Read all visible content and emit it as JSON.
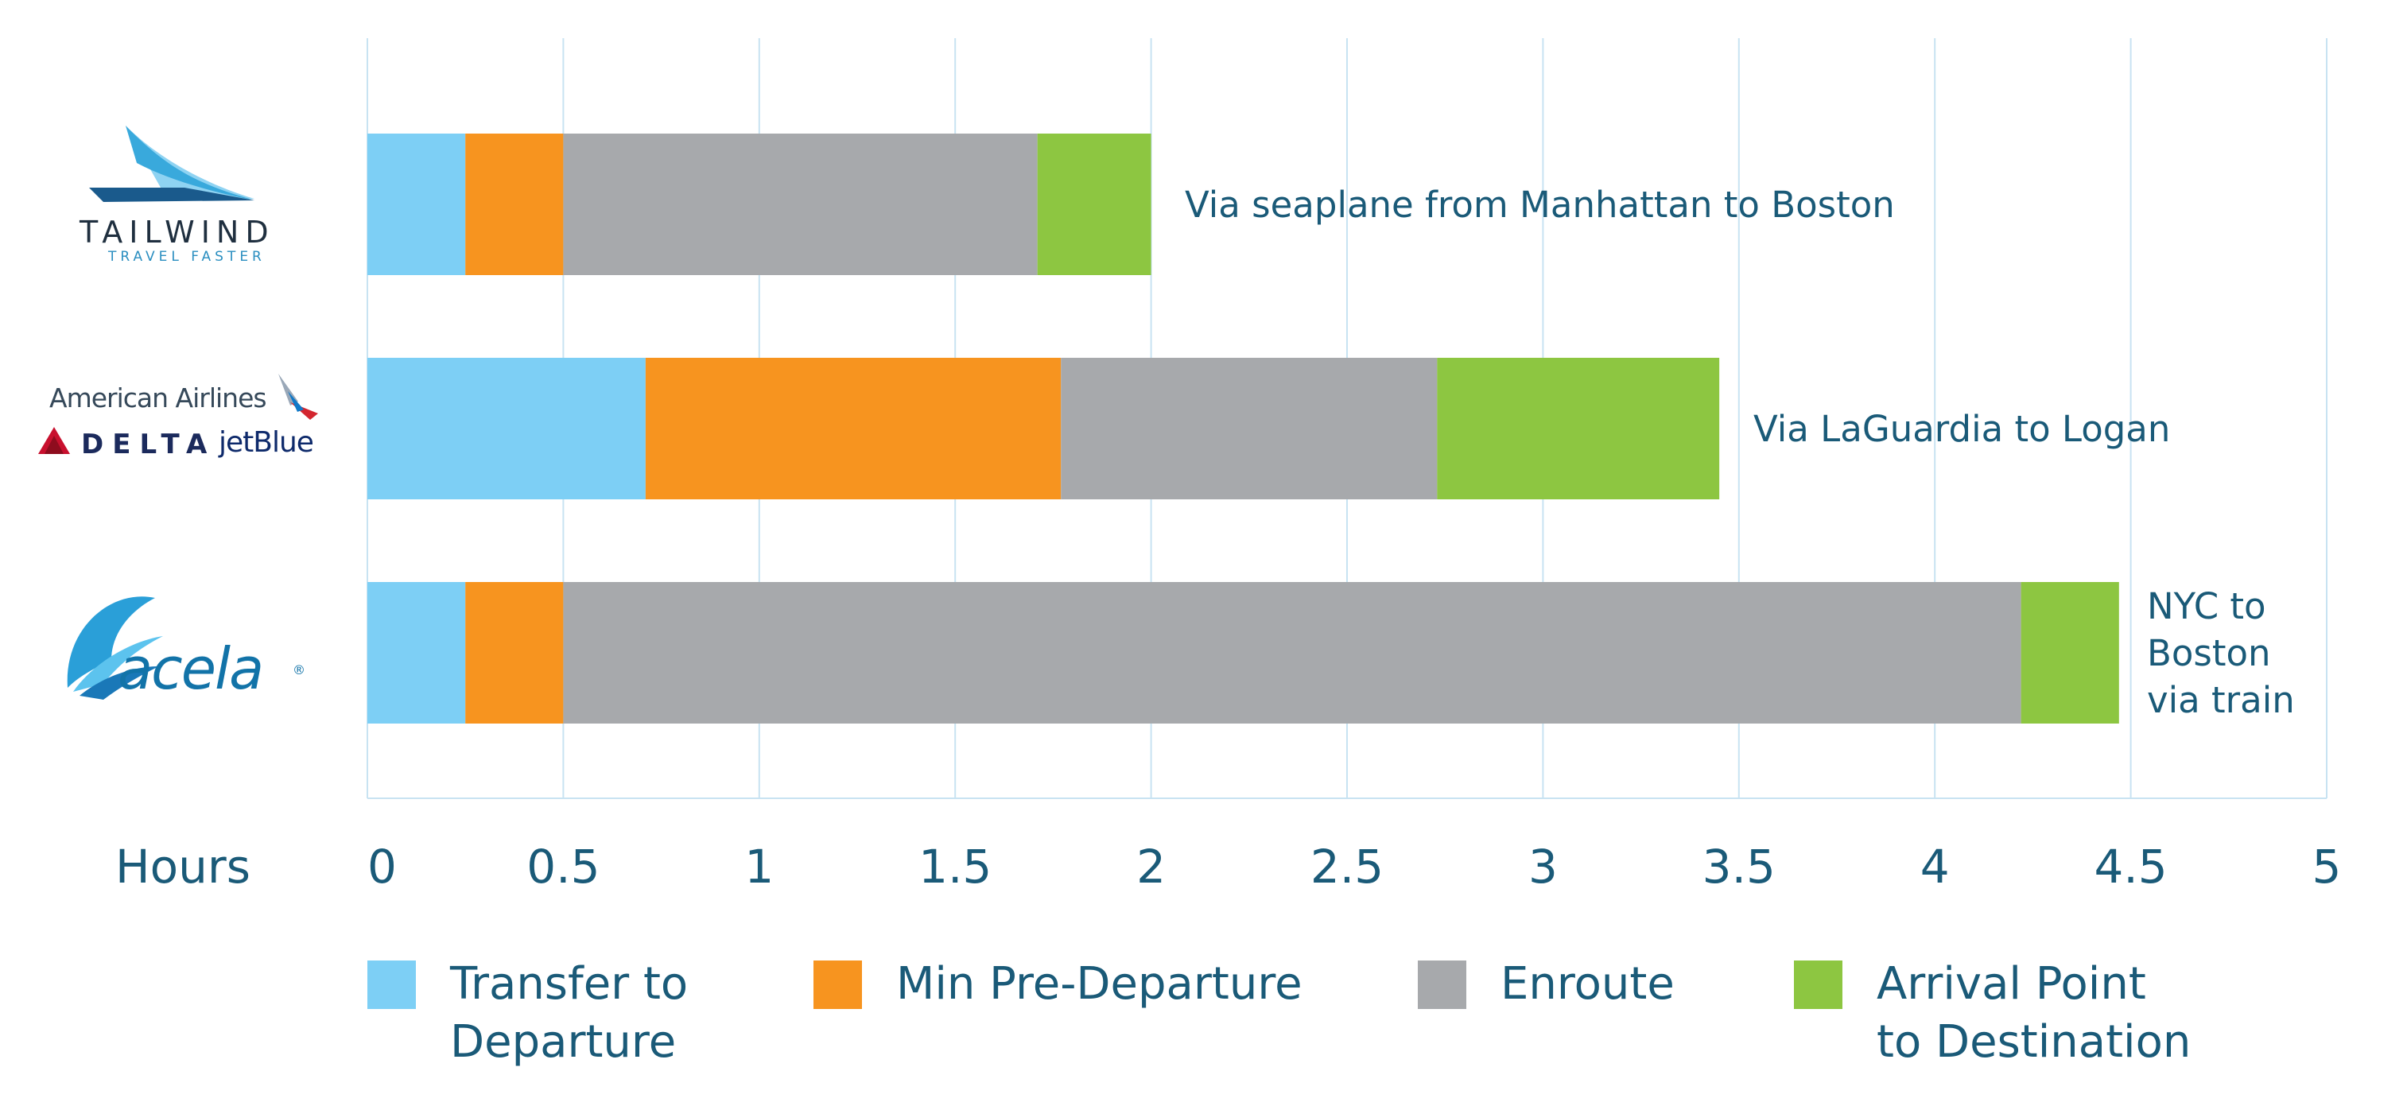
{
  "chart_data": {
    "type": "bar",
    "orientation": "horizontal",
    "stacked": true,
    "xlabel": "Hours",
    "xlim": [
      0,
      5
    ],
    "x_ticks": [
      "0",
      "0.5",
      "1",
      "1.5",
      "2",
      "2.5",
      "3",
      "3.5",
      "4",
      "4.5",
      "5"
    ],
    "grid": true,
    "legend_position": "bottom",
    "categories": [
      "Tailwind",
      "American Airlines / Delta / JetBlue",
      "Acela"
    ],
    "series": [
      {
        "name": "Transfer to Departure",
        "color": "#7dcff5",
        "values": [
          0.25,
          0.71,
          0.25
        ]
      },
      {
        "name": "Min Pre-Departure",
        "color": "#f7941f",
        "values": [
          0.25,
          1.06,
          0.25
        ]
      },
      {
        "name": "Enroute",
        "color": "#a7a9ac",
        "values": [
          1.21,
          0.96,
          3.72
        ]
      },
      {
        "name": "Arrival Point to Destination",
        "color": "#8dc641",
        "values": [
          0.29,
          0.72,
          0.25
        ]
      }
    ],
    "legend_labels": [
      [
        "Transfer to",
        "Departure"
      ],
      [
        "Min Pre-Departure"
      ],
      [
        "Enroute"
      ],
      [
        "Arrival Point",
        "to Destination"
      ]
    ],
    "annotations": [
      [
        "Via seaplane from Manhattan to Boston"
      ],
      [
        "Via LaGuardia to Logan"
      ],
      [
        "NYC to",
        "Boston",
        "via train"
      ]
    ]
  },
  "logos": {
    "tailwind": {
      "name": "TAILWIND",
      "tagline": "TRAVEL FASTER",
      "color": "#1f4f6e",
      "icon": "sail-icon"
    },
    "airlines": {
      "american": "American Airlines",
      "delta": "DELTA",
      "jetblue": "jetBlue",
      "color": "#1b2a5c"
    },
    "acela": {
      "name": "acela",
      "mark": "®",
      "color": "#1273a8",
      "icon": "wing-icon"
    }
  },
  "colors": {
    "text": "#1a5a78",
    "grid": "#c8e3f2"
  }
}
